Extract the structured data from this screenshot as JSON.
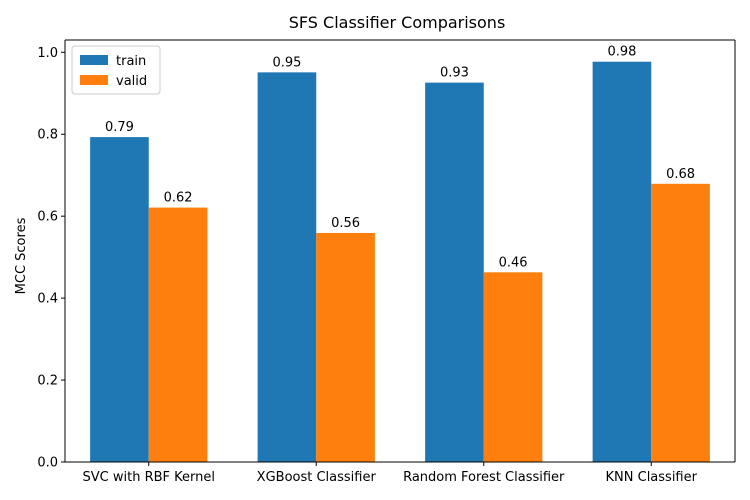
{
  "chart_data": {
    "type": "bar",
    "title": "SFS Classifier Comparisons",
    "xlabel": "",
    "ylabel": "MCC Scores",
    "ylim": [
      0,
      1.03
    ],
    "yticks": [
      "0.0",
      "0.2",
      "0.4",
      "0.6",
      "0.8",
      "1.0"
    ],
    "ytick_values": [
      0.0,
      0.2,
      0.4,
      0.6,
      0.8,
      1.0
    ],
    "categories": [
      "SVC with RBF Kernel",
      "XGBoost Classifier",
      "Random Forest Classifier",
      "KNN Classifier"
    ],
    "series": [
      {
        "name": "train",
        "color": "#1f77b4",
        "values": [
          0.793,
          0.951,
          0.926,
          0.977
        ],
        "labels": [
          "0.79",
          "0.95",
          "0.93",
          "0.98"
        ]
      },
      {
        "name": "valid",
        "color": "#ff7f0e",
        "values": [
          0.621,
          0.559,
          0.463,
          0.679
        ],
        "labels": [
          "0.62",
          "0.56",
          "0.46",
          "0.68"
        ]
      }
    ],
    "legend_position": "top-left",
    "grid": false
  }
}
